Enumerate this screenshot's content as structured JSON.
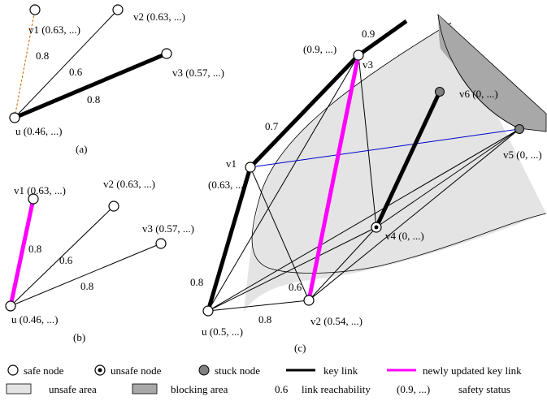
{
  "colors": {
    "key_link": "#000000",
    "new_key_link": "#ff00ff",
    "blue_link": "#0000cc",
    "dashed_link": "#cc6600",
    "unsafe_area": "#e4e4e4",
    "blocking_area": "#a8a8a8",
    "stuck_node": "#808080"
  },
  "panel_a": {
    "caption": "(a)",
    "nodes": {
      "v1": "v1 (0.63, ...)",
      "v2": "v2 (0.63, ...)",
      "v3": "v3 (0.57, ...)",
      "u": "u (0.46, ...)"
    },
    "links": {
      "u_v1": "0.8",
      "u_v2": "0.6",
      "u_v3": "0.8"
    }
  },
  "panel_b": {
    "caption": "(b)",
    "nodes": {
      "v1": "v1 (0.63, ...)",
      "v2": "v2 (0.63, ...)",
      "v3": "v3 (0.57, ...)",
      "u": "u (0.46, ...)"
    },
    "links": {
      "u_v1": "0.8",
      "u_v2": "0.6",
      "u_v3": "0.8"
    }
  },
  "panel_c": {
    "caption": "(c)",
    "nodes": {
      "v3_status": "(0.9, ...)",
      "v3_name": "v3",
      "v1_name": "v1",
      "v1_status": "(0.63, ...)",
      "v6": "v6 (0, ...)",
      "v5": "v5 (0, ...)",
      "v4": "v4 (0, ...)",
      "u": "u (0.5, ...)",
      "v2": "v2 (0.54, ...)"
    },
    "links": {
      "v3_out": "0.9",
      "v1_v3": "0.7",
      "u_v1": "0.8",
      "u_v2": "0.8",
      "v2_v3": "0.6"
    }
  },
  "legend": {
    "safe_node": "safe node",
    "unsafe_node": "unsafe node",
    "stuck_node": "stuck node",
    "key_link": "key link",
    "new_key_link": "newly updated key link",
    "unsafe_area": "unsafe area",
    "blocking_area": "blocking area",
    "reach_sample": "0.6",
    "reach_label": "link reachability",
    "status_sample": "(0.9, ...)",
    "status_label": "safety status"
  }
}
